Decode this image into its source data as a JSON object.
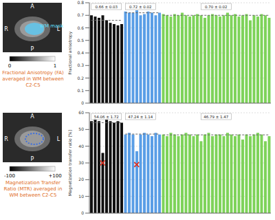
{
  "figure": {
    "panels": [
      {
        "orientation": [
          "A",
          "P",
          "R",
          "L"
        ],
        "mask_label": "WM mask",
        "colorbar_labels": [
          "0",
          "1"
        ],
        "caption": "Fractional Anisotropy (FA) averaged in WM between C2-C5"
      },
      {
        "orientation": [
          "A",
          "P",
          "R",
          "L"
        ],
        "colorbar_labels": [
          "-100",
          "+100"
        ],
        "caption": "Magnetization Transfer Ratio (MTR) averaged in WM between C2-C5"
      }
    ]
  },
  "chart_data": [
    {
      "type": "bar",
      "y_label": "Fractional anisotropy",
      "categories": [
        null,
        null,
        null,
        null,
        null,
        null,
        null,
        null,
        null,
        null,
        null,
        null,
        null,
        null,
        null,
        null,
        null,
        null,
        null,
        null,
        null,
        null,
        null,
        null,
        null,
        null,
        null,
        null,
        null,
        null,
        null,
        null,
        null,
        null,
        null,
        null,
        null,
        null,
        null,
        null,
        null,
        null,
        null,
        null,
        null,
        null,
        null,
        null
      ],
      "groups": [
        {
          "color": "#111111",
          "label": "0.66 ± 0.03",
          "mean": 0.66,
          "values": [
            0.7,
            0.69,
            0.68,
            0.7,
            0.66,
            0.64,
            0.63,
            0.62,
            0.63
          ]
        },
        {
          "color": "#5a9ee6",
          "label": "0.72 ± 0.02",
          "mean": 0.72,
          "values": [
            0.73,
            0.72,
            0.72,
            0.74,
            0.7,
            0.71,
            0.73,
            0.72,
            0.7,
            0.72
          ]
        },
        {
          "color": "#7ed35a",
          "label": "0.70 ± 0.02",
          "mean": 0.7,
          "values": [
            0.71,
            0.7,
            0.69,
            0.71,
            0.7,
            0.72,
            0.7,
            0.69,
            0.7,
            0.71,
            0.7,
            0.68,
            0.7,
            0.71,
            0.7,
            0.69,
            0.7,
            0.72,
            0.7,
            0.71,
            0.69,
            0.7,
            0.71,
            0.66,
            0.7,
            0.69,
            0.71,
            0.7,
            0.68
          ]
        }
      ],
      "ylim": [
        0,
        0.8
      ],
      "yticks": [
        0,
        0.1,
        0.2,
        0.3,
        0.4,
        0.5,
        0.6,
        0.7,
        0.8
      ],
      "grid": true,
      "tick_labels": "y"
    },
    {
      "type": "bar",
      "y_label": "Magnetization transfer ratio [%]",
      "categories": [
        null,
        null,
        null,
        null,
        null,
        null,
        null,
        null,
        null,
        null,
        null,
        null,
        null,
        null,
        null,
        null,
        null,
        null,
        null,
        null,
        null,
        null,
        null,
        null,
        null,
        null,
        null,
        null,
        null,
        null,
        null,
        null,
        null,
        null,
        null,
        null,
        null,
        null,
        null,
        null,
        null,
        null,
        null,
        null,
        null,
        null,
        null,
        null
      ],
      "groups": [
        {
          "color": "#111111",
          "label": "54.06 ± 1.72",
          "mean": 54.06,
          "values": [
            55,
            56,
            55,
            36,
            56,
            55,
            54,
            55,
            54
          ]
        },
        {
          "color": "#5a9ee6",
          "label": "47.24 ± 1.14",
          "mean": 47.24,
          "values": [
            47,
            48,
            47,
            37,
            47,
            48,
            47,
            46,
            48,
            47
          ]
        },
        {
          "color": "#7ed35a",
          "label": "46.79 ± 1.47",
          "mean": 46.79,
          "values": [
            47,
            46,
            48,
            47,
            46,
            47,
            48,
            47,
            46,
            47,
            43,
            47,
            48,
            46,
            47,
            47,
            46,
            48,
            47,
            46,
            47,
            44,
            47,
            46,
            47,
            48,
            47,
            43,
            46
          ]
        }
      ],
      "marker_values": [
        null,
        null,
        null,
        30,
        null,
        null,
        null,
        null,
        null,
        null,
        null,
        null,
        29,
        null,
        null,
        null,
        null,
        null,
        null,
        null,
        null,
        null,
        null,
        null,
        null,
        null,
        null,
        null,
        null,
        null,
        null,
        null,
        null,
        null,
        null,
        null,
        null,
        null,
        null,
        null,
        null,
        null,
        null,
        null,
        null,
        null,
        null,
        null
      ],
      "marker": "x",
      "marker_color": "#e03020",
      "ylim": [
        0,
        60
      ],
      "yticks": [
        0,
        10,
        20,
        30,
        40,
        50,
        60
      ],
      "grid": true,
      "tick_labels": "y"
    }
  ]
}
